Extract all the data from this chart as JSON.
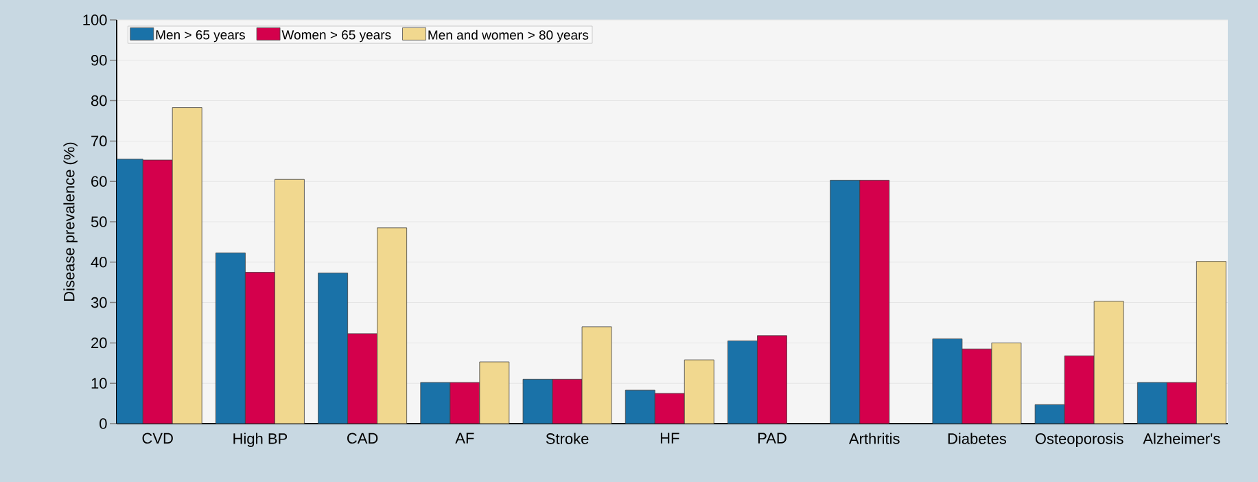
{
  "chart_data": {
    "type": "bar",
    "ylabel": "Disease prevalence (%)",
    "categories": [
      "CVD",
      "High BP",
      "CAD",
      "AF",
      "Stroke",
      "HF",
      "PAD",
      "Arthritis",
      "Diabetes",
      "Osteoporosis",
      "Alzheimer's"
    ],
    "series": [
      {
        "name": "Men > 65 years",
        "color": "#1a72a8",
        "values": [
          65.5,
          42.3,
          37.3,
          10.2,
          11,
          8.3,
          20.5,
          60.3,
          21,
          4.7,
          10.2
        ]
      },
      {
        "name": "Women > 65 years",
        "color": "#d4004c",
        "values": [
          65.3,
          37.5,
          22.3,
          10.2,
          11,
          7.5,
          21.8,
          60.3,
          18.5,
          16.8,
          10.2
        ]
      },
      {
        "name": "Men and women > 80 years",
        "color": "#f1d88f",
        "values": [
          78.3,
          60.5,
          48.5,
          15.3,
          24,
          15.8,
          null,
          null,
          20,
          30.3,
          40.2
        ]
      }
    ],
    "ylim": [
      0,
      100
    ],
    "yticks": [
      0,
      10,
      20,
      30,
      40,
      50,
      60,
      70,
      80,
      90,
      100
    ],
    "grid": "y",
    "legend": "top left"
  }
}
